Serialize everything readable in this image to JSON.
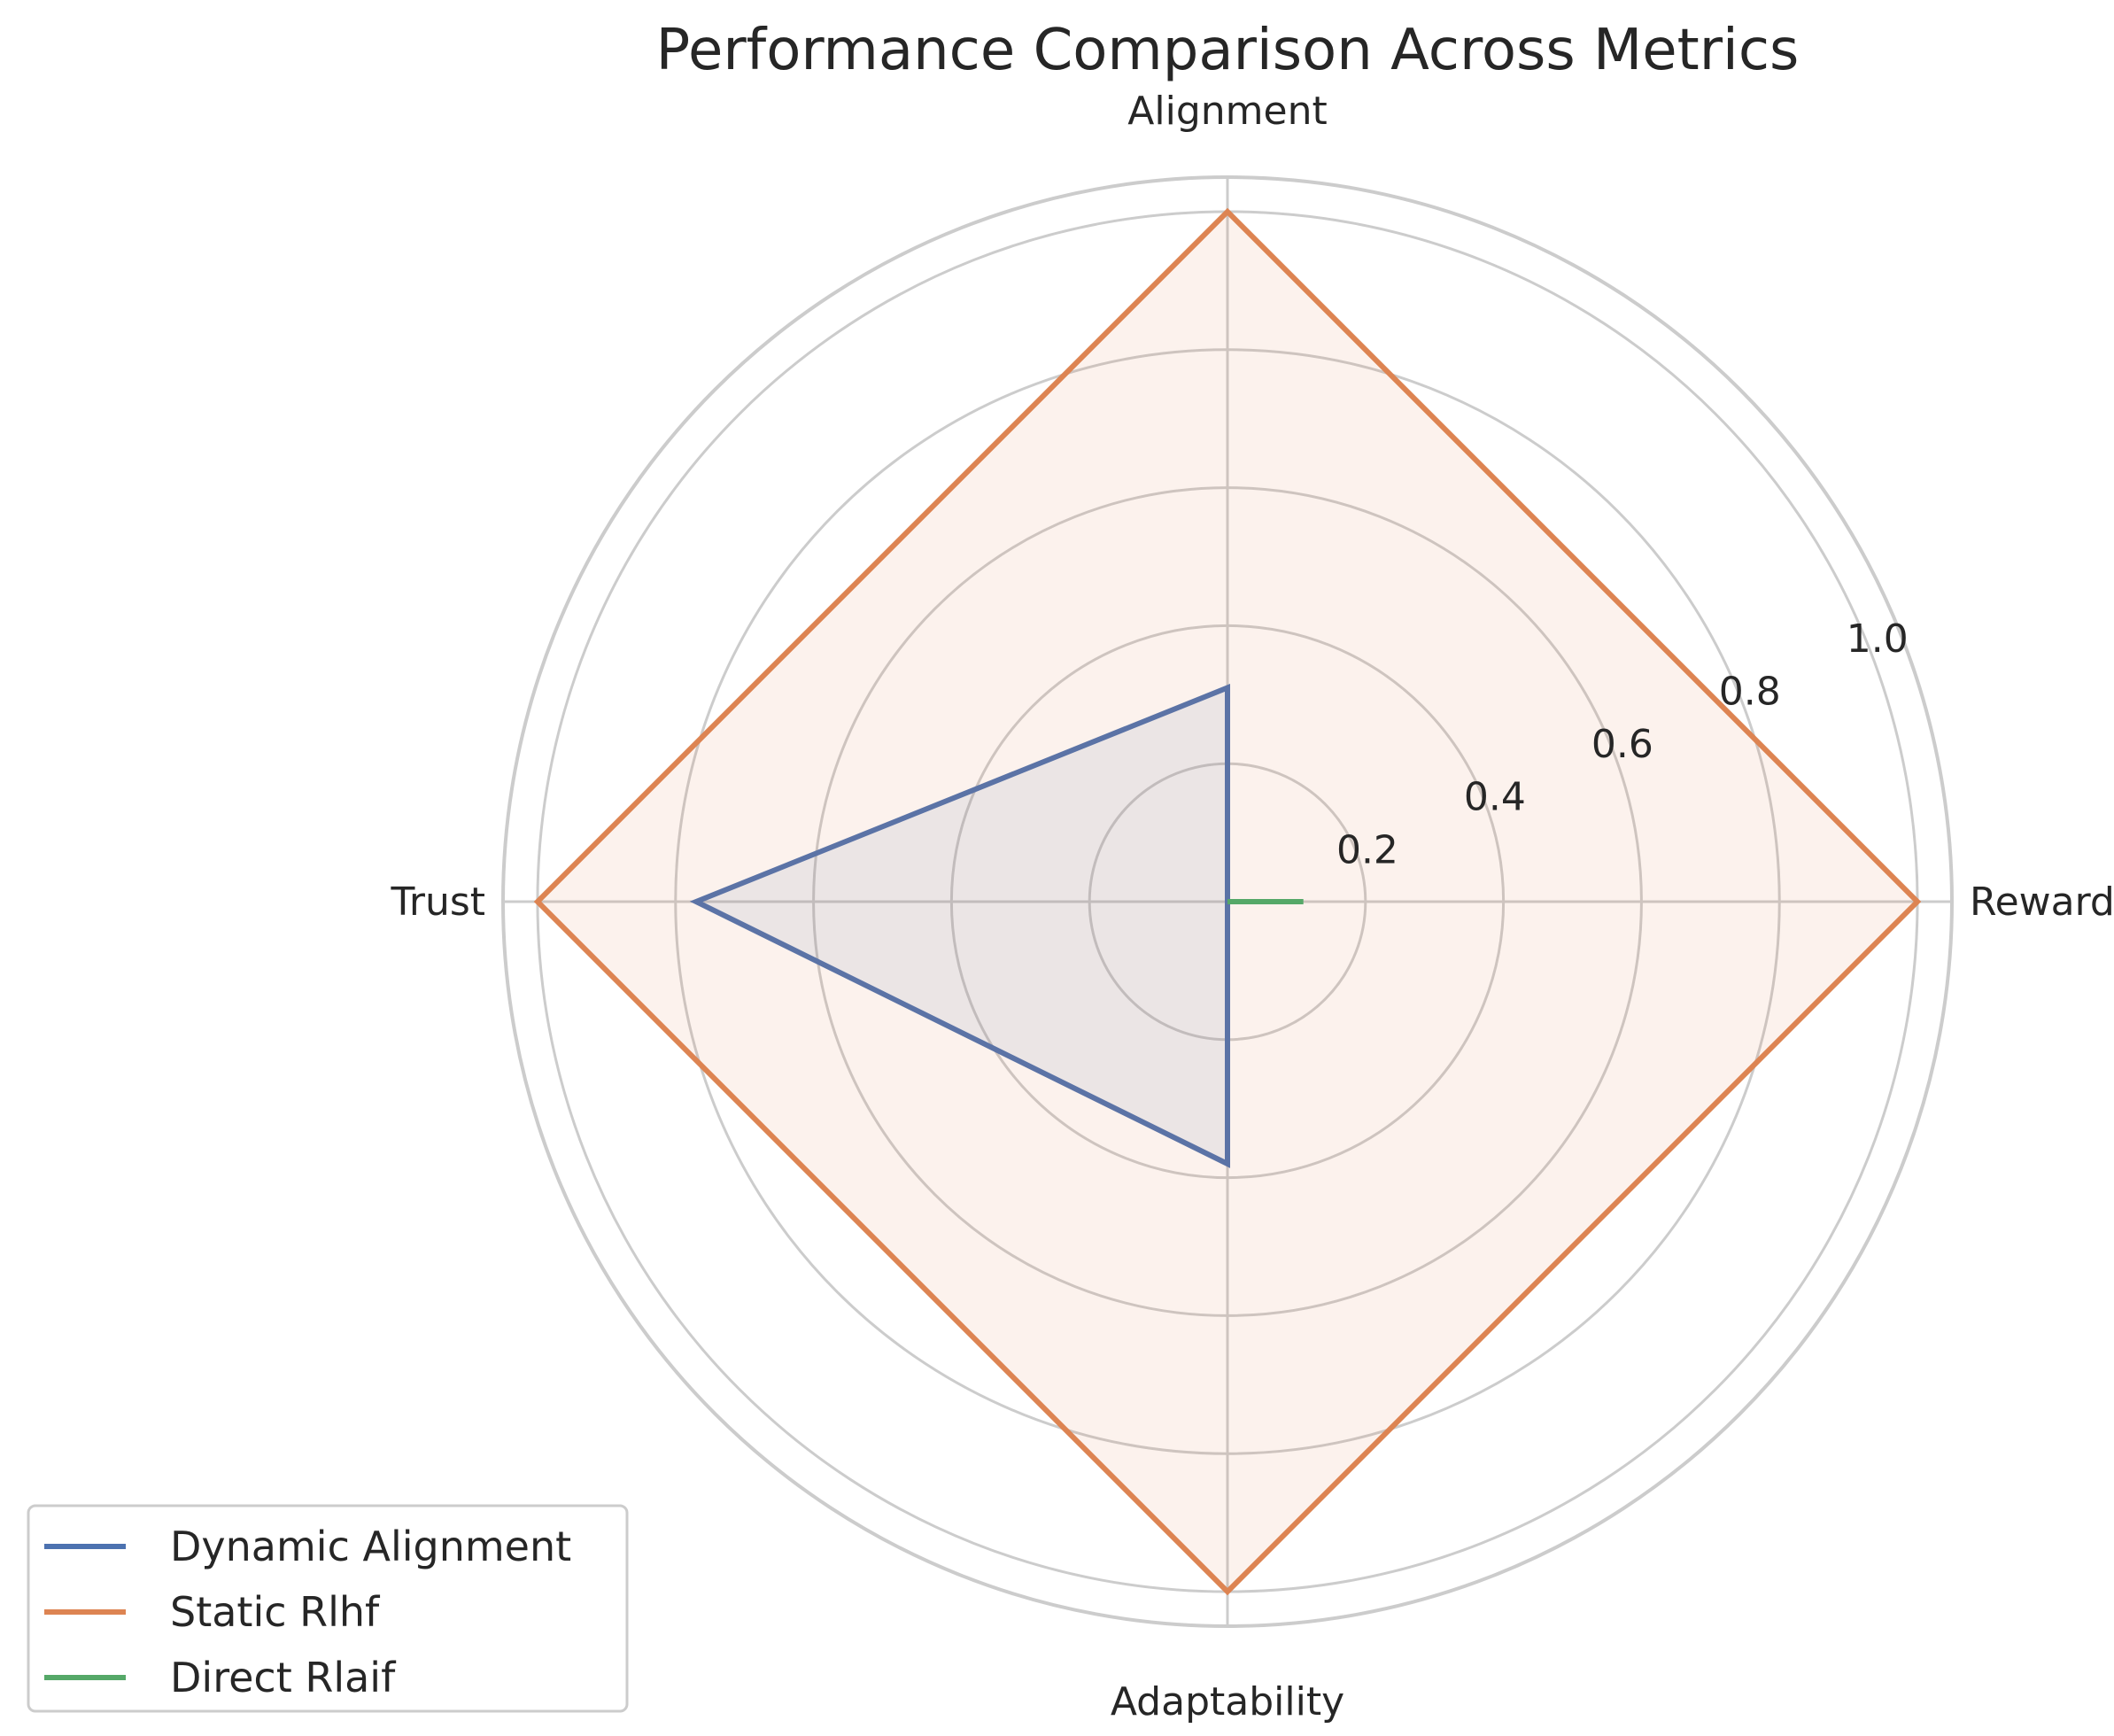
{
  "chart_data": {
    "type": "radar",
    "title": "Performance Comparison Across Metrics",
    "axes": [
      "Reward",
      "Alignment",
      "Trust",
      "Adaptability"
    ],
    "r_ticks": [
      "0.2",
      "0.4",
      "0.6",
      "0.8",
      "1.0"
    ],
    "r_tick_values": [
      0.2,
      0.4,
      0.6,
      0.8,
      1.0
    ],
    "r_max": 1.05,
    "grid": true,
    "legend_position": "lower-left",
    "series": [
      {
        "name": "Dynamic Alignment",
        "color": "#4c72b0",
        "values": [
          0.0,
          0.31,
          0.77,
          0.38
        ]
      },
      {
        "name": "Static Rlhf",
        "color": "#dd8452",
        "values": [
          1.0,
          1.0,
          1.0,
          1.0
        ]
      },
      {
        "name": "Direct Rlaif",
        "color": "#55a868",
        "values": [
          0.11,
          0.0,
          0.0,
          0.0
        ]
      }
    ]
  }
}
